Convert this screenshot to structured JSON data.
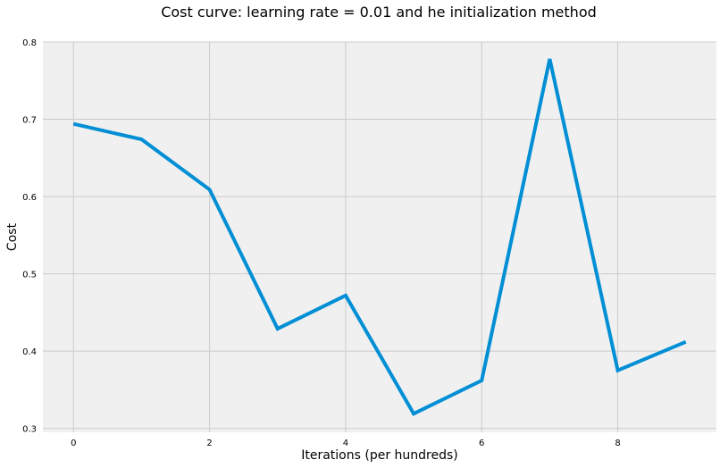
{
  "chart_data": {
    "type": "line",
    "title": "Cost curve: learning rate = 0.01 and he initialization method",
    "xlabel": "Iterations (per hundreds)",
    "ylabel": "Cost",
    "xlim": [
      -0.45,
      9.45
    ],
    "ylim": [
      0.295,
      0.8
    ],
    "x_ticks": [
      0,
      2,
      4,
      6,
      8
    ],
    "y_ticks": [
      0.3,
      0.4,
      0.5,
      0.6,
      0.7,
      0.8
    ],
    "x_tick_labels": [
      "0",
      "2",
      "4",
      "6",
      "8"
    ],
    "y_tick_labels": [
      "0.3",
      "0.4",
      "0.5",
      "0.6",
      "0.7",
      "0.8"
    ],
    "grid": true,
    "series": [
      {
        "x": [
          0,
          1,
          2,
          3,
          4,
          5,
          6,
          7,
          8,
          9
        ],
        "values": [
          0.694,
          0.674,
          0.609,
          0.429,
          0.472,
          0.319,
          0.362,
          0.778,
          0.375,
          0.412
        ]
      }
    ],
    "colors": {
      "line": "#008fd5",
      "plot_bg": "#f0f0f0",
      "grid": "#cbcbcb"
    }
  }
}
